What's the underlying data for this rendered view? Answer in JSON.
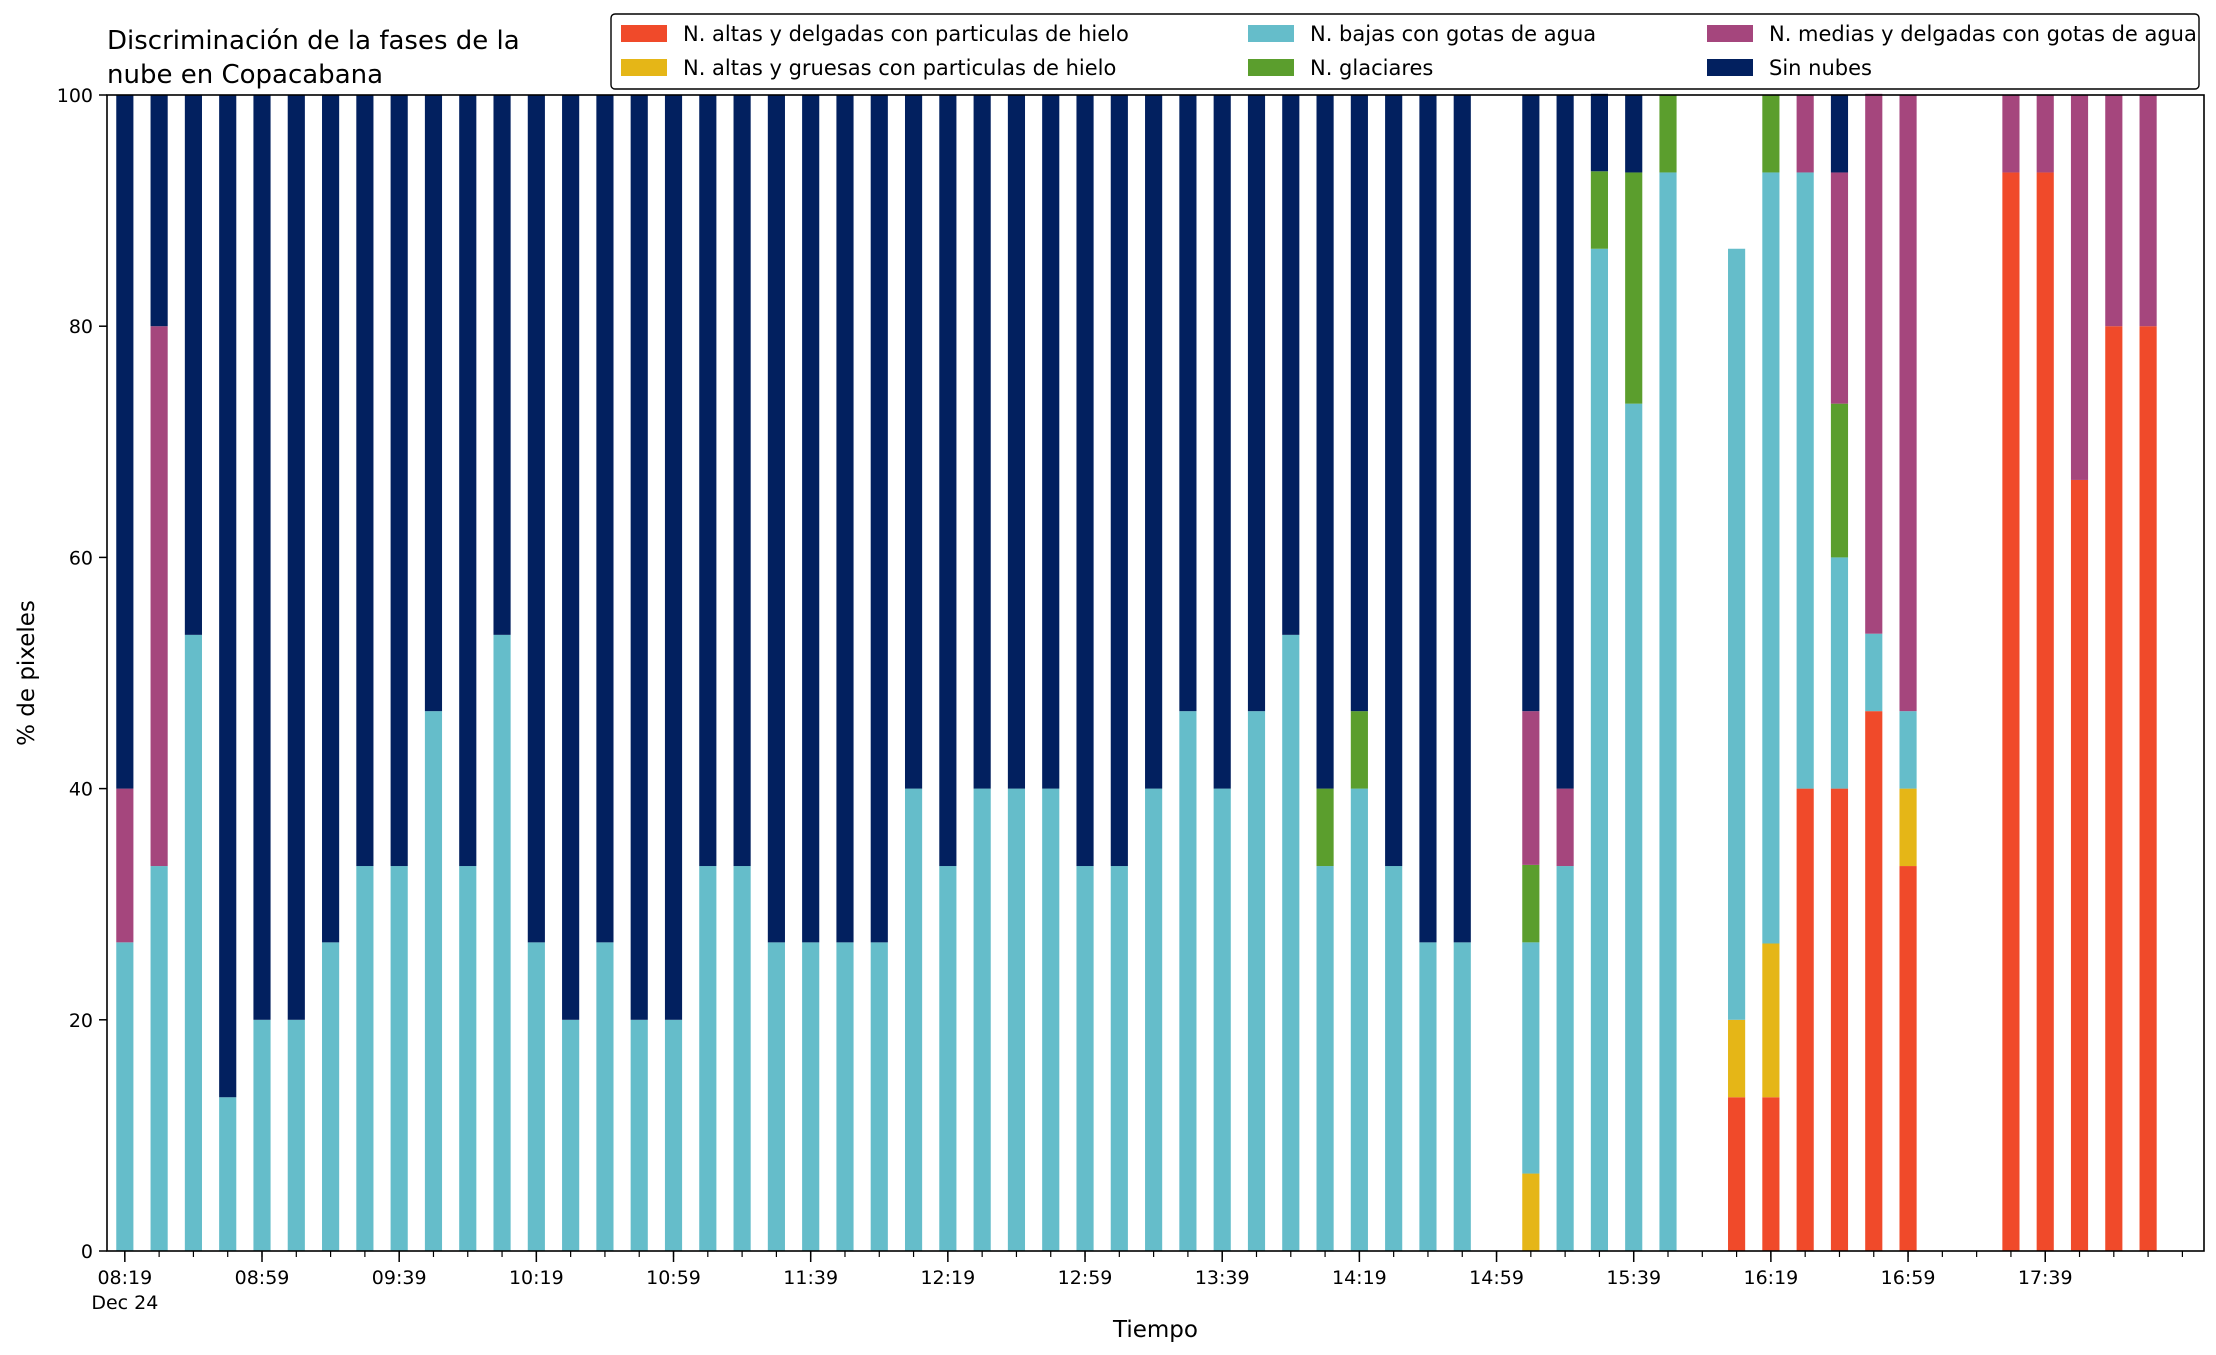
{
  "chart_data": {
    "type": "bar",
    "stacked": true,
    "title": "Discriminación de la fases de la\nnube en Copacabana",
    "xlabel": "Tiempo",
    "ylabel": "% de pixeles",
    "ylim": [
      0,
      100
    ],
    "yticks": [
      0,
      20,
      40,
      60,
      80,
      100
    ],
    "x_start": "08:19",
    "x_interval_minutes": 10,
    "x_count": 60,
    "xtick_labels": [
      "08:19",
      "08:59",
      "09:39",
      "10:19",
      "10:59",
      "11:39",
      "12:19",
      "12:59",
      "13:39",
      "14:19",
      "14:59",
      "15:39",
      "16:19",
      "16:59",
      "17:39"
    ],
    "xtick_sublabel": "Dec 24",
    "grid": false,
    "legend_position": "top-right",
    "legend_columns": 3,
    "series": [
      {
        "name": "N. altas y delgadas con particulas de hielo",
        "color": "#f04a2a",
        "values": [
          0,
          0,
          0,
          0,
          0,
          0,
          0,
          0,
          0,
          0,
          0,
          0,
          0,
          0,
          0,
          0,
          0,
          0,
          0,
          0,
          0,
          0,
          0,
          0,
          0,
          0,
          0,
          0,
          0,
          0,
          0,
          0,
          0,
          0,
          0,
          0,
          0,
          0,
          0,
          0,
          0,
          0,
          0,
          0,
          0,
          0,
          0,
          13.3,
          13.3,
          40,
          40,
          46.7,
          33.3,
          0,
          0,
          93.3,
          93.3,
          66.7,
          80,
          80
        ]
      },
      {
        "name": "N. altas y gruesas con particulas de hielo",
        "color": "#e5b617",
        "values": [
          0,
          0,
          0,
          0,
          0,
          0,
          0,
          0,
          0,
          0,
          0,
          0,
          0,
          0,
          0,
          0,
          0,
          0,
          0,
          0,
          0,
          0,
          0,
          0,
          0,
          0,
          0,
          0,
          0,
          0,
          0,
          0,
          0,
          0,
          0,
          0,
          0,
          0,
          0,
          0,
          0,
          6.7,
          0,
          0,
          0,
          0,
          0,
          6.7,
          13.3,
          0,
          0,
          0,
          6.7,
          0,
          0,
          0,
          0,
          0,
          0,
          0
        ]
      },
      {
        "name": "N. bajas con gotas de agua",
        "color": "#65bdca",
        "values": [
          26.7,
          33.3,
          53.3,
          13.3,
          20,
          20,
          26.7,
          33.3,
          33.3,
          46.7,
          33.3,
          53.3,
          26.7,
          20,
          26.7,
          20,
          20,
          33.3,
          33.3,
          26.7,
          26.7,
          26.7,
          26.7,
          40,
          33.3,
          40,
          40,
          40,
          33.3,
          33.3,
          40,
          46.7,
          40,
          46.7,
          53.3,
          33.3,
          40,
          33.3,
          26.7,
          26.7,
          0,
          20,
          33.3,
          86.7,
          73.3,
          93.3,
          0,
          66.7,
          66.7,
          53.3,
          20,
          6.7,
          6.7,
          0,
          0,
          0,
          0,
          0,
          0,
          0
        ]
      },
      {
        "name": "N. glaciares",
        "color": "#5b9e2d",
        "values": [
          0,
          0,
          0,
          0,
          0,
          0,
          0,
          0,
          0,
          0,
          0,
          0,
          0,
          0,
          0,
          0,
          0,
          0,
          0,
          0,
          0,
          0,
          0,
          0,
          0,
          0,
          0,
          0,
          0,
          0,
          0,
          0,
          0,
          0,
          0,
          6.7,
          6.7,
          0,
          0,
          0,
          0,
          6.7,
          0,
          6.7,
          20,
          6.7,
          0,
          0,
          6.7,
          0,
          13.3,
          0,
          0,
          0,
          0,
          0,
          0,
          0,
          0,
          0
        ]
      },
      {
        "name": "N. medias y delgadas con gotas de agua",
        "color": "#a5467d",
        "values": [
          13.3,
          46.7,
          0,
          0,
          0,
          0,
          0,
          0,
          0,
          0,
          0,
          0,
          0,
          0,
          0,
          0,
          0,
          0,
          0,
          0,
          0,
          0,
          0,
          0,
          0,
          0,
          0,
          0,
          0,
          0,
          0,
          0,
          0,
          0,
          0,
          0,
          0,
          0,
          0,
          0,
          0,
          13.3,
          6.7,
          0,
          0,
          0,
          0,
          0,
          0,
          6.7,
          20,
          46.7,
          53.3,
          0,
          0,
          6.7,
          6.7,
          33.3,
          20,
          20
        ]
      },
      {
        "name": "Sin nubes",
        "color": "#02205f",
        "values": [
          60,
          20,
          46.7,
          86.7,
          80,
          80,
          73.3,
          66.7,
          66.7,
          53.3,
          66.7,
          46.7,
          73.3,
          80,
          73.3,
          80,
          80,
          66.7,
          66.7,
          73.3,
          73.3,
          73.3,
          73.3,
          60,
          66.7,
          60,
          60,
          60,
          66.7,
          66.7,
          60,
          53.3,
          60,
          53.3,
          46.7,
          60,
          53.3,
          66.7,
          73.3,
          73.3,
          0,
          53.3,
          60,
          6.7,
          6.7,
          0,
          0,
          0,
          0,
          0,
          6.7,
          0,
          0,
          0,
          0,
          0,
          0,
          0,
          0,
          0
        ]
      }
    ]
  }
}
